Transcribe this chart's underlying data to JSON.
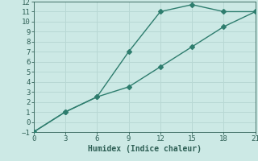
{
  "line1_x": [
    0,
    3,
    6,
    9,
    12,
    15,
    18,
    21
  ],
  "line1_y": [
    -1,
    1,
    2.5,
    7.0,
    11.0,
    11.7,
    11.0,
    11.0
  ],
  "line2_x": [
    0,
    3,
    6,
    9,
    12,
    15,
    18,
    21
  ],
  "line2_y": [
    -1,
    1,
    2.5,
    3.5,
    5.5,
    7.5,
    9.5,
    11.0
  ],
  "line_color": "#2e7d6e",
  "bg_color": "#cce9e5",
  "grid_color": "#b8d8d4",
  "xlabel": "Humidex (Indice chaleur)",
  "xlim": [
    0,
    21
  ],
  "ylim": [
    -1,
    12
  ],
  "xticks": [
    0,
    3,
    6,
    9,
    12,
    15,
    18,
    21
  ],
  "yticks": [
    -1,
    0,
    1,
    2,
    3,
    4,
    5,
    6,
    7,
    8,
    9,
    10,
    11,
    12
  ],
  "font_color": "#2e5f55",
  "marker": "D",
  "markersize": 3,
  "linewidth": 1.0,
  "tick_fontsize": 6.5,
  "xlabel_fontsize": 7.0
}
